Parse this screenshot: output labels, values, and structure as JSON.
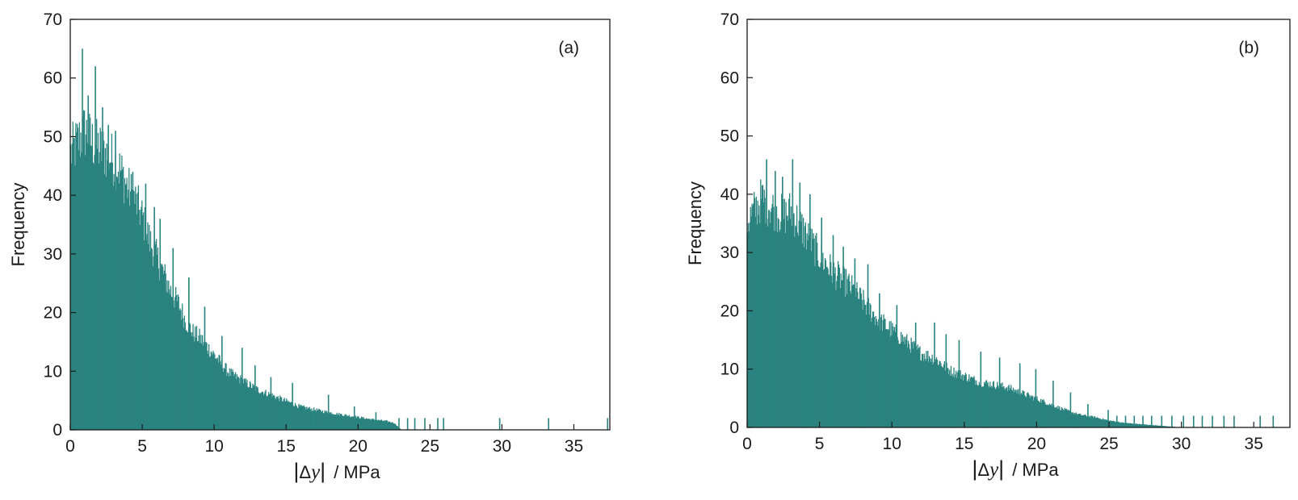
{
  "chart_data": [
    {
      "type": "histogram",
      "panel_label": "(a)",
      "xlabel": "|Δy|  / MPa",
      "xlabel_parts": {
        "delta": "Δ",
        "var": "y",
        "unit": "/ MPa"
      },
      "ylabel": "Frequency",
      "xlim": [
        0,
        37.5
      ],
      "ylim": [
        0,
        70
      ],
      "xticks": [
        0,
        5,
        10,
        15,
        20,
        25,
        30,
        35
      ],
      "yticks": [
        0,
        10,
        20,
        30,
        40,
        50,
        60,
        70
      ],
      "bar_color": "#2a837f",
      "bin_width": 0.05,
      "envelope": [
        [
          0,
          48
        ],
        [
          0.5,
          50
        ],
        [
          1.0,
          52
        ],
        [
          1.5,
          50
        ],
        [
          2.0,
          49
        ],
        [
          2.5,
          48
        ],
        [
          3.0,
          47
        ],
        [
          3.5,
          45
        ],
        [
          4.0,
          42
        ],
        [
          4.5,
          40
        ],
        [
          5.0,
          37
        ],
        [
          5.5,
          33
        ],
        [
          6.0,
          30
        ],
        [
          6.5,
          27
        ],
        [
          7.0,
          24
        ],
        [
          7.5,
          22
        ],
        [
          8.0,
          19
        ],
        [
          8.5,
          17
        ],
        [
          9.0,
          16
        ],
        [
          10.0,
          13
        ],
        [
          11.0,
          10
        ],
        [
          12.0,
          8.5
        ],
        [
          13.0,
          7
        ],
        [
          14.0,
          6
        ],
        [
          15.0,
          5
        ],
        [
          16.0,
          4
        ],
        [
          17.0,
          3.5
        ],
        [
          18.0,
          3
        ],
        [
          19.0,
          2.6
        ],
        [
          20.0,
          2.2
        ],
        [
          21.0,
          1.8
        ],
        [
          22.0,
          1.5
        ],
        [
          22.5,
          1.2
        ],
        [
          23.0,
          0
        ]
      ],
      "spikes": [
        [
          0.8,
          65
        ],
        [
          1.2,
          57
        ],
        [
          1.7,
          62
        ],
        [
          2.2,
          55
        ],
        [
          2.6,
          52
        ],
        [
          3.1,
          51
        ],
        [
          4.3,
          44
        ],
        [
          5.2,
          42
        ],
        [
          5.8,
          38
        ],
        [
          6.2,
          36
        ],
        [
          7.1,
          31
        ],
        [
          8.2,
          26
        ],
        [
          9.3,
          21
        ],
        [
          10.5,
          16
        ],
        [
          11.9,
          14
        ],
        [
          12.8,
          11
        ],
        [
          13.9,
          9
        ],
        [
          15.4,
          8
        ],
        [
          17.9,
          6
        ],
        [
          19.7,
          4
        ],
        [
          21.2,
          3
        ],
        [
          22.8,
          2
        ],
        [
          23.4,
          2
        ],
        [
          23.9,
          2
        ],
        [
          24.6,
          2
        ],
        [
          25.5,
          2
        ],
        [
          25.9,
          2
        ],
        [
          29.8,
          2
        ],
        [
          33.2,
          2
        ],
        [
          37.3,
          2
        ]
      ]
    },
    {
      "type": "histogram",
      "panel_label": "(b)",
      "xlabel": "|Δy|  / MPa",
      "xlabel_parts": {
        "delta": "Δ",
        "var": "y",
        "unit": "/ MPa"
      },
      "ylabel": "Frequency",
      "xlim": [
        0,
        37.5
      ],
      "ylim": [
        0,
        70
      ],
      "xticks": [
        0,
        5,
        10,
        15,
        20,
        25,
        30,
        35
      ],
      "yticks": [
        0,
        10,
        20,
        30,
        40,
        50,
        60,
        70
      ],
      "bar_color": "#2a837f",
      "bin_width": 0.05,
      "envelope": [
        [
          0,
          36
        ],
        [
          0.5,
          38
        ],
        [
          1.0,
          40
        ],
        [
          1.5,
          39
        ],
        [
          2.0,
          38
        ],
        [
          2.5,
          37
        ],
        [
          3.0,
          38
        ],
        [
          3.5,
          36
        ],
        [
          4.0,
          34
        ],
        [
          4.5,
          32
        ],
        [
          5.0,
          30
        ],
        [
          6.0,
          27
        ],
        [
          7.0,
          25
        ],
        [
          8.0,
          22
        ],
        [
          9.0,
          19
        ],
        [
          10.0,
          17
        ],
        [
          11.0,
          15
        ],
        [
          12.0,
          13
        ],
        [
          13.0,
          12
        ],
        [
          14.0,
          10
        ],
        [
          15.0,
          9
        ],
        [
          16.0,
          8
        ],
        [
          17.0,
          7.5
        ],
        [
          18.0,
          7
        ],
        [
          19.0,
          6
        ],
        [
          20.0,
          5
        ],
        [
          21.0,
          4
        ],
        [
          22.0,
          3
        ],
        [
          23.0,
          2.2
        ],
        [
          24.0,
          1.8
        ],
        [
          25.0,
          1.2
        ],
        [
          26.0,
          0.8
        ],
        [
          27.0,
          0.6
        ],
        [
          28.0,
          0.4
        ],
        [
          29.0,
          0.2
        ],
        [
          30.0,
          0
        ]
      ],
      "spikes": [
        [
          1.3,
          46
        ],
        [
          1.9,
          44
        ],
        [
          2.4,
          43
        ],
        [
          3.1,
          46
        ],
        [
          3.6,
          42
        ],
        [
          4.3,
          40
        ],
        [
          5.1,
          36
        ],
        [
          5.9,
          33
        ],
        [
          6.6,
          31
        ],
        [
          7.4,
          29
        ],
        [
          8.3,
          28
        ],
        [
          9.1,
          23
        ],
        [
          10.3,
          21
        ],
        [
          11.6,
          18
        ],
        [
          12.9,
          18
        ],
        [
          13.7,
          16
        ],
        [
          14.6,
          15
        ],
        [
          16.1,
          13
        ],
        [
          17.4,
          12
        ],
        [
          18.8,
          11
        ],
        [
          19.9,
          10
        ],
        [
          21.1,
          8
        ],
        [
          22.3,
          6
        ],
        [
          23.5,
          4
        ],
        [
          24.9,
          3
        ],
        [
          25.5,
          2
        ],
        [
          26.1,
          2
        ],
        [
          26.7,
          2
        ],
        [
          27.3,
          2
        ],
        [
          27.9,
          2
        ],
        [
          28.6,
          2
        ],
        [
          29.3,
          2
        ],
        [
          30.1,
          2
        ],
        [
          30.8,
          2
        ],
        [
          31.4,
          2
        ],
        [
          32.1,
          2
        ],
        [
          32.9,
          2
        ],
        [
          33.6,
          2
        ],
        [
          35.4,
          2
        ],
        [
          36.3,
          2
        ]
      ]
    }
  ]
}
